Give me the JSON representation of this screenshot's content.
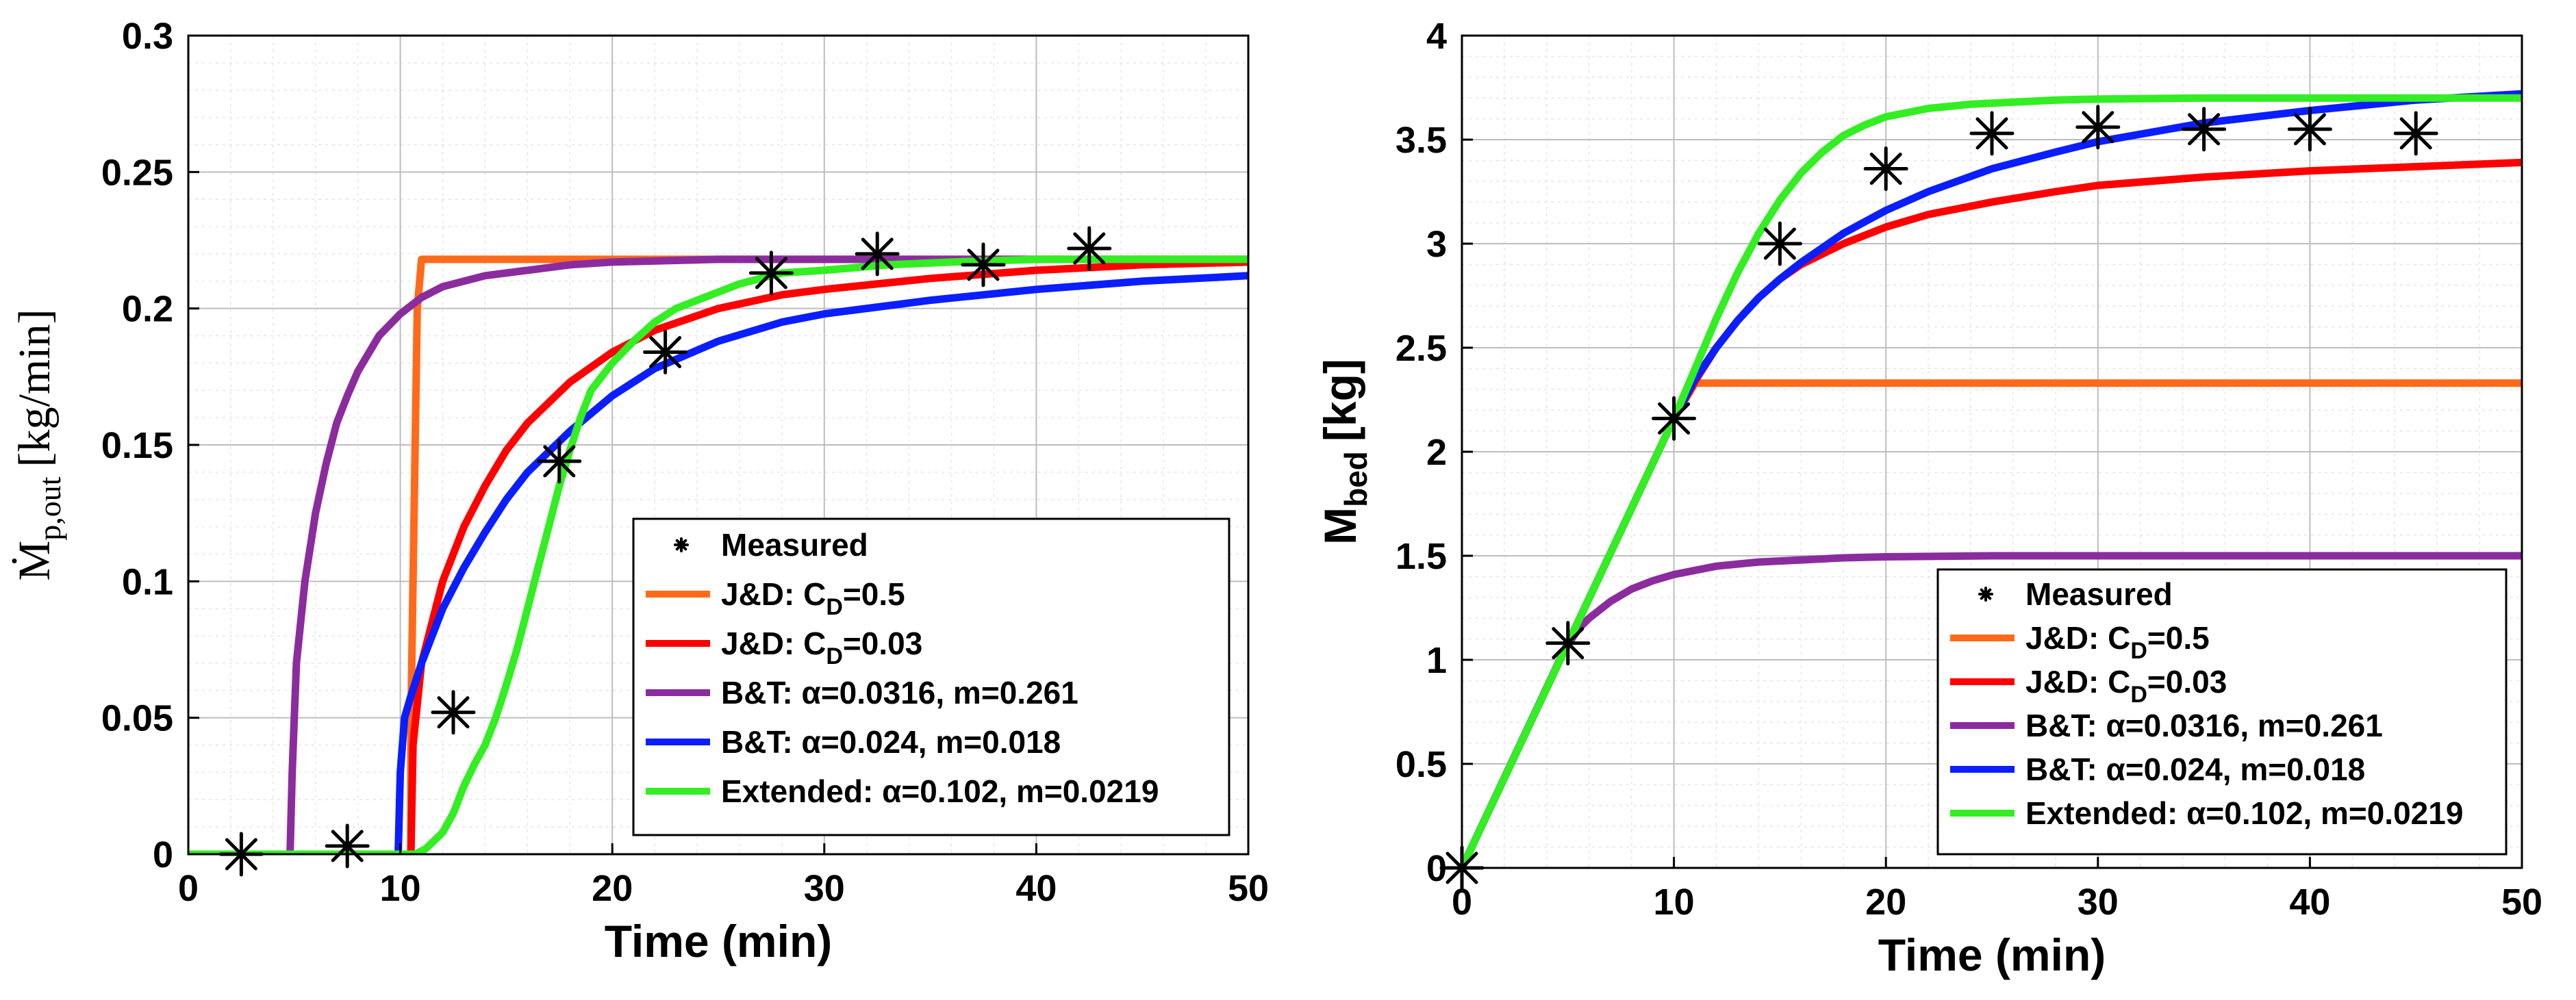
{
  "colors": {
    "measured": "#000000",
    "jd_cd05": "#ff6a1a",
    "jd_cd003": "#ff0000",
    "bt_0316": "#8b2c9e",
    "bt_024": "#0a1eff",
    "extended": "#33ee22"
  },
  "chart_data": [
    {
      "type": "line",
      "xlabel": "Time (min)",
      "ylabel_main": "Ṁ",
      "ylabel_sub": "p,out",
      "ylabel_unit": "[kg/min]",
      "xlim": [
        0,
        50
      ],
      "ylim": [
        0,
        0.3
      ],
      "x_ticks": [
        "0",
        "10",
        "20",
        "30",
        "40",
        "50"
      ],
      "y_ticks": [
        "0",
        "0.05",
        "0.1",
        "0.15",
        "0.2",
        "0.25",
        "0.3"
      ],
      "legend_position": "bottom-right",
      "legend": [
        {
          "key": "measured",
          "marker": "*",
          "label": "Measured",
          "sub": ""
        },
        {
          "key": "jd_cd05",
          "label": "J&D: C",
          "sub": "D",
          "after": "=0.5"
        },
        {
          "key": "jd_cd003",
          "label": "J&D: C",
          "sub": "D",
          "after": "=0.03"
        },
        {
          "key": "bt_0316",
          "label": "B&T: α=0.0316, m=0.261",
          "sub": ""
        },
        {
          "key": "bt_024",
          "label": "B&T: α=0.024, m=0.018",
          "sub": ""
        },
        {
          "key": "extended",
          "label": "Extended: α=0.102, m=0.0219",
          "sub": ""
        }
      ],
      "series": [
        {
          "key": "measured",
          "name": "Measured",
          "type": "scatter",
          "x": [
            2.5,
            7.5,
            12.5,
            17.5,
            22.5,
            27.5,
            32.5,
            37.5,
            42.5
          ],
          "y": [
            0.0,
            0.003,
            0.052,
            0.144,
            0.184,
            0.213,
            0.22,
            0.216,
            0.222
          ]
        },
        {
          "key": "jd_cd05",
          "name": "J&D: CD=0.5",
          "x": [
            0,
            10.5,
            10.5,
            10.8,
            11.0,
            50
          ],
          "y": [
            0,
            0,
            0.05,
            0.2,
            0.218,
            0.218
          ]
        },
        {
          "key": "jd_cd003",
          "name": "J&D: CD=0.03",
          "x": [
            0,
            10.5,
            10.6,
            11,
            12,
            13,
            14,
            15,
            16,
            18,
            20,
            22,
            25,
            28,
            30,
            35,
            40,
            45,
            50
          ],
          "y": [
            0,
            0,
            0.04,
            0.07,
            0.1,
            0.12,
            0.135,
            0.148,
            0.158,
            0.173,
            0.184,
            0.192,
            0.2,
            0.205,
            0.207,
            0.211,
            0.214,
            0.216,
            0.217
          ]
        },
        {
          "key": "bt_0316",
          "name": "B&T: α=0.0316, m=0.261",
          "x": [
            0,
            4.8,
            4.9,
            5.1,
            5.5,
            6,
            6.5,
            7,
            7.5,
            8,
            9,
            10,
            11,
            12,
            14,
            16,
            18,
            20,
            25,
            30,
            50
          ],
          "y": [
            0,
            0,
            0.03,
            0.07,
            0.1,
            0.125,
            0.143,
            0.158,
            0.168,
            0.177,
            0.19,
            0.198,
            0.204,
            0.208,
            0.212,
            0.214,
            0.216,
            0.217,
            0.218,
            0.218,
            0.218
          ]
        },
        {
          "key": "bt_024",
          "name": "B&T: α=0.024, m=0.018",
          "x": [
            0,
            9.9,
            10.0,
            10.2,
            10.5,
            11,
            11.5,
            12,
            13,
            14,
            15,
            16,
            18,
            20,
            22,
            25,
            28,
            30,
            35,
            40,
            45,
            50
          ],
          "y": [
            0,
            0,
            0.03,
            0.05,
            0.058,
            0.07,
            0.08,
            0.09,
            0.105,
            0.118,
            0.13,
            0.14,
            0.155,
            0.168,
            0.178,
            0.188,
            0.195,
            0.198,
            0.203,
            0.207,
            0.21,
            0.212
          ]
        },
        {
          "key": "extended",
          "name": "Extended: α=0.102, m=0.0219",
          "x": [
            0,
            10.7,
            11.2,
            12,
            12.5,
            13,
            13.5,
            14,
            14.5,
            15,
            15.5,
            16,
            16.5,
            17,
            17.5,
            18,
            18.5,
            19,
            20,
            21,
            22,
            23,
            24,
            25,
            26,
            27,
            28,
            30,
            33,
            36,
            40,
            45,
            50
          ],
          "y": [
            0,
            0,
            0.002,
            0.008,
            0.015,
            0.025,
            0.033,
            0.04,
            0.05,
            0.062,
            0.075,
            0.09,
            0.105,
            0.12,
            0.135,
            0.148,
            0.16,
            0.17,
            0.18,
            0.188,
            0.195,
            0.2,
            0.203,
            0.206,
            0.209,
            0.211,
            0.213,
            0.214,
            0.216,
            0.217,
            0.218,
            0.218,
            0.218
          ]
        }
      ]
    },
    {
      "type": "line",
      "xlabel": "Time (min)",
      "ylabel_main": "M",
      "ylabel_sub": "bed",
      "ylabel_unit": "[kg]",
      "xlim": [
        0,
        50
      ],
      "ylim": [
        0,
        4
      ],
      "x_ticks": [
        "0",
        "10",
        "20",
        "30",
        "40",
        "50"
      ],
      "y_ticks": [
        "0",
        "0.5",
        "1",
        "1.5",
        "2",
        "2.5",
        "3",
        "3.5",
        "4"
      ],
      "legend_position": "bottom-right",
      "legend": [
        {
          "key": "measured",
          "marker": "*",
          "label": "Measured",
          "sub": ""
        },
        {
          "key": "jd_cd05",
          "label": "J&D: C",
          "sub": "D",
          "after": "=0.5"
        },
        {
          "key": "jd_cd003",
          "label": "J&D: C",
          "sub": "D",
          "after": "=0.03"
        },
        {
          "key": "bt_0316",
          "label": "B&T: α=0.0316, m=0.261",
          "sub": ""
        },
        {
          "key": "bt_024",
          "label": "B&T: α=0.024, m=0.018",
          "sub": ""
        },
        {
          "key": "extended",
          "label": "Extended: α=0.102, m=0.0219",
          "sub": ""
        }
      ],
      "series": [
        {
          "key": "measured",
          "name": "Measured",
          "type": "scatter",
          "x": [
            0,
            5,
            10,
            15,
            20,
            25,
            30,
            35,
            40,
            45
          ],
          "y": [
            0,
            1.08,
            2.16,
            3.0,
            3.36,
            3.53,
            3.56,
            3.55,
            3.55,
            3.53
          ]
        },
        {
          "key": "jd_cd05",
          "name": "J&D: CD=0.5",
          "x": [
            0,
            10,
            11,
            50
          ],
          "y": [
            0,
            2.16,
            2.33,
            2.33
          ]
        },
        {
          "key": "jd_cd003",
          "name": "J&D: CD=0.03",
          "x": [
            0,
            10,
            11,
            12,
            13,
            14,
            15,
            16,
            18,
            20,
            22,
            25,
            28,
            30,
            35,
            40,
            45,
            50
          ],
          "y": [
            0,
            2.16,
            2.34,
            2.5,
            2.63,
            2.74,
            2.83,
            2.9,
            3.0,
            3.08,
            3.14,
            3.2,
            3.25,
            3.28,
            3.32,
            3.35,
            3.37,
            3.39
          ]
        },
        {
          "key": "bt_0316",
          "name": "B&T: α=0.0316, m=0.261",
          "x": [
            0,
            4.8,
            5.5,
            6,
            7,
            8,
            9,
            10,
            12,
            14,
            16,
            18,
            20,
            25,
            30,
            40,
            50
          ],
          "y": [
            0,
            1.04,
            1.15,
            1.2,
            1.28,
            1.34,
            1.38,
            1.41,
            1.45,
            1.47,
            1.48,
            1.49,
            1.495,
            1.5,
            1.5,
            1.5,
            1.5
          ]
        },
        {
          "key": "bt_024",
          "name": "B&T: α=0.024, m=0.018",
          "x": [
            0,
            10,
            11,
            12,
            13,
            14,
            15,
            16,
            18,
            20,
            22,
            25,
            28,
            30,
            35,
            40,
            45,
            50
          ],
          "y": [
            0,
            2.16,
            2.35,
            2.5,
            2.63,
            2.74,
            2.83,
            2.91,
            3.05,
            3.16,
            3.25,
            3.36,
            3.44,
            3.49,
            3.58,
            3.64,
            3.69,
            3.72
          ]
        },
        {
          "key": "extended",
          "name": "Extended: α=0.102, m=0.0219",
          "x": [
            0,
            10,
            11,
            12,
            13,
            14,
            15,
            16,
            17,
            18,
            19,
            20,
            22,
            24,
            26,
            28,
            30,
            35,
            40,
            45,
            50
          ],
          "y": [
            0,
            2.16,
            2.4,
            2.64,
            2.86,
            3.05,
            3.21,
            3.34,
            3.44,
            3.52,
            3.57,
            3.61,
            3.65,
            3.67,
            3.68,
            3.69,
            3.695,
            3.7,
            3.7,
            3.7,
            3.7
          ]
        }
      ]
    }
  ]
}
